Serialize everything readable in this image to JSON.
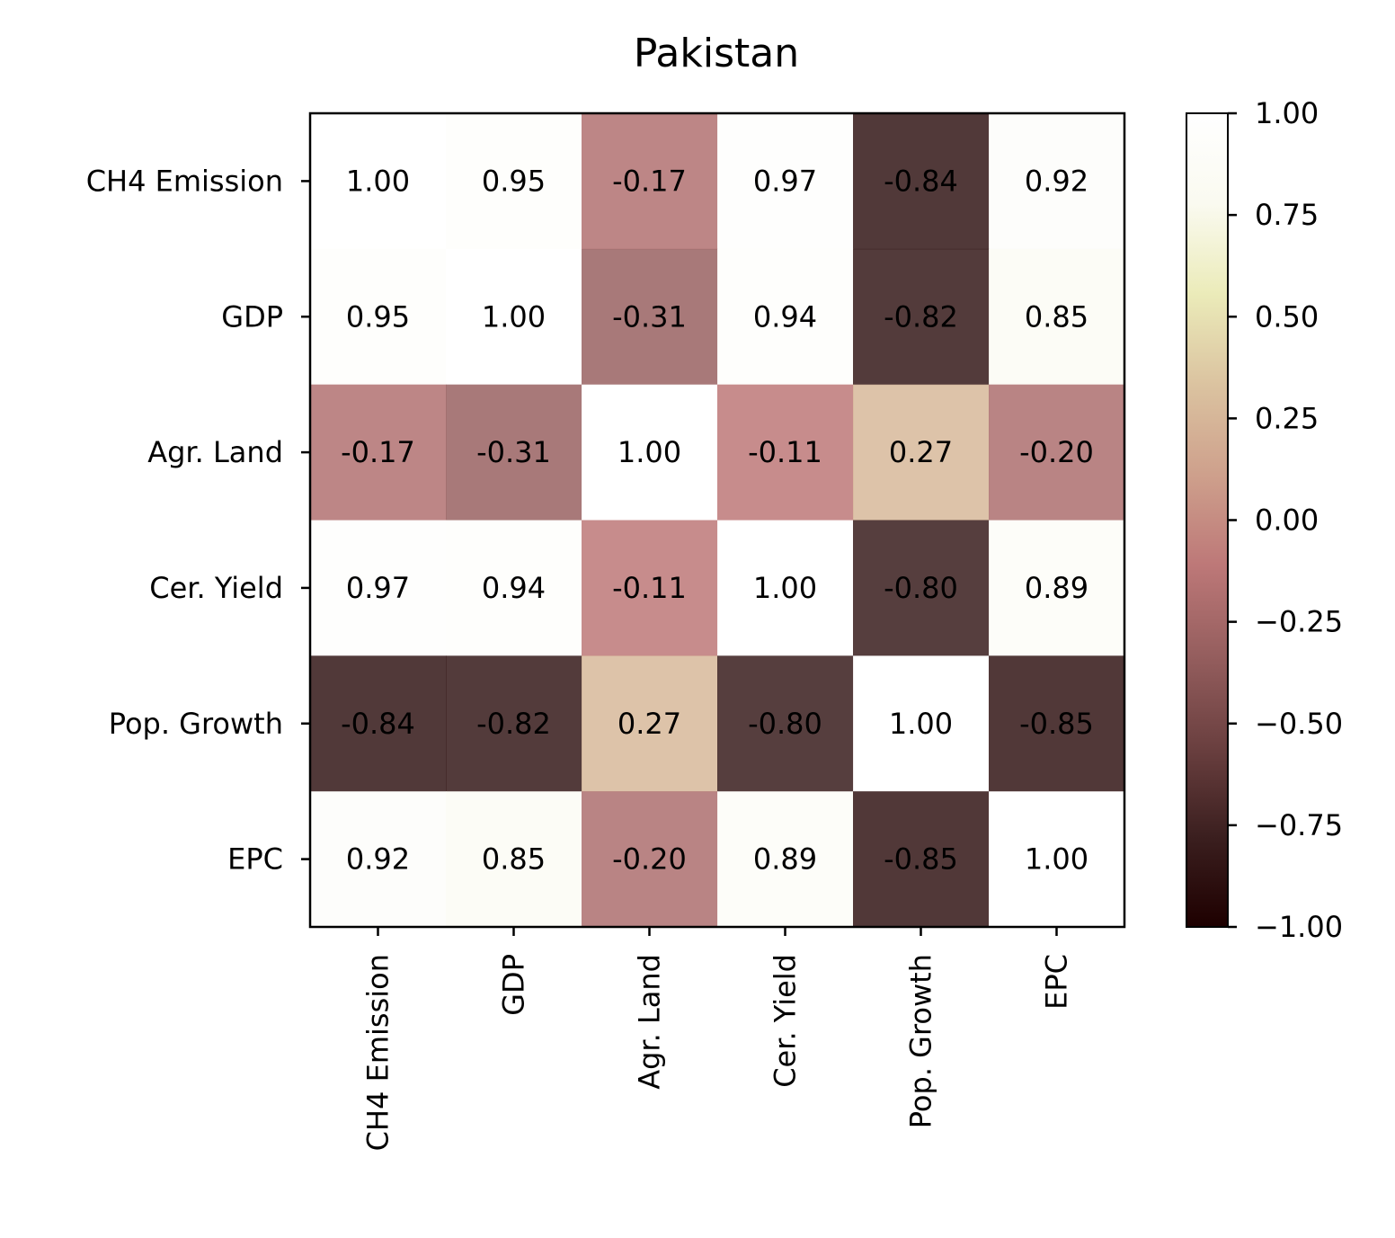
{
  "chart_data": {
    "type": "heatmap",
    "title": "Pakistan",
    "xlabel": "",
    "ylabel": "",
    "x_categories": [
      "CH4 Emission",
      "GDP",
      "Agr. Land",
      "Cer. Yield",
      "Pop. Growth",
      "EPC"
    ],
    "y_categories": [
      "CH4 Emission",
      "GDP",
      "Agr. Land",
      "Cer. Yield",
      "Pop. Growth",
      "EPC"
    ],
    "values": [
      [
        1.0,
        0.95,
        -0.17,
        0.97,
        -0.84,
        0.92
      ],
      [
        0.95,
        1.0,
        -0.31,
        0.94,
        -0.82,
        0.85
      ],
      [
        -0.17,
        -0.31,
        1.0,
        -0.11,
        0.27,
        -0.2
      ],
      [
        0.97,
        0.94,
        -0.11,
        1.0,
        -0.8,
        0.89
      ],
      [
        -0.84,
        -0.82,
        0.27,
        -0.8,
        1.0,
        -0.85
      ],
      [
        0.92,
        0.85,
        -0.2,
        0.89,
        -0.85,
        1.0
      ]
    ],
    "value_labels": [
      [
        "1.00",
        "0.95",
        "-0.17",
        "0.97",
        "-0.84",
        "0.92"
      ],
      [
        "0.95",
        "1.00",
        "-0.31",
        "0.94",
        "-0.82",
        "0.85"
      ],
      [
        "-0.17",
        "-0.31",
        "1.00",
        "-0.11",
        "0.27",
        "-0.20"
      ],
      [
        "0.97",
        "0.94",
        "-0.11",
        "1.00",
        "-0.80",
        "0.89"
      ],
      [
        "-0.84",
        "-0.82",
        "0.27",
        "-0.80",
        "1.00",
        "-0.85"
      ],
      [
        "0.92",
        "0.85",
        "-0.20",
        "0.89",
        "-0.85",
        "1.00"
      ]
    ],
    "colorbar": {
      "range": [
        -1.0,
        1.0
      ],
      "ticks": [
        1.0,
        0.75,
        0.5,
        0.25,
        0.0,
        -0.25,
        -0.5,
        -0.75,
        -1.0
      ],
      "tick_labels": [
        "1.00",
        "0.75",
        "0.50",
        "0.25",
        "0.00",
        "−0.25",
        "−0.50",
        "−0.75",
        "−1.00"
      ],
      "colors": [
        "#1e0000",
        "#3b1f1f",
        "#6b4040",
        "#955e5e",
        "#bd7878",
        "#cea08c",
        "#dbc3a0",
        "#ebebb9",
        "#fafaf0",
        "#ffffff"
      ]
    },
    "x_tick_rotation": "vertical",
    "grid": false
  }
}
